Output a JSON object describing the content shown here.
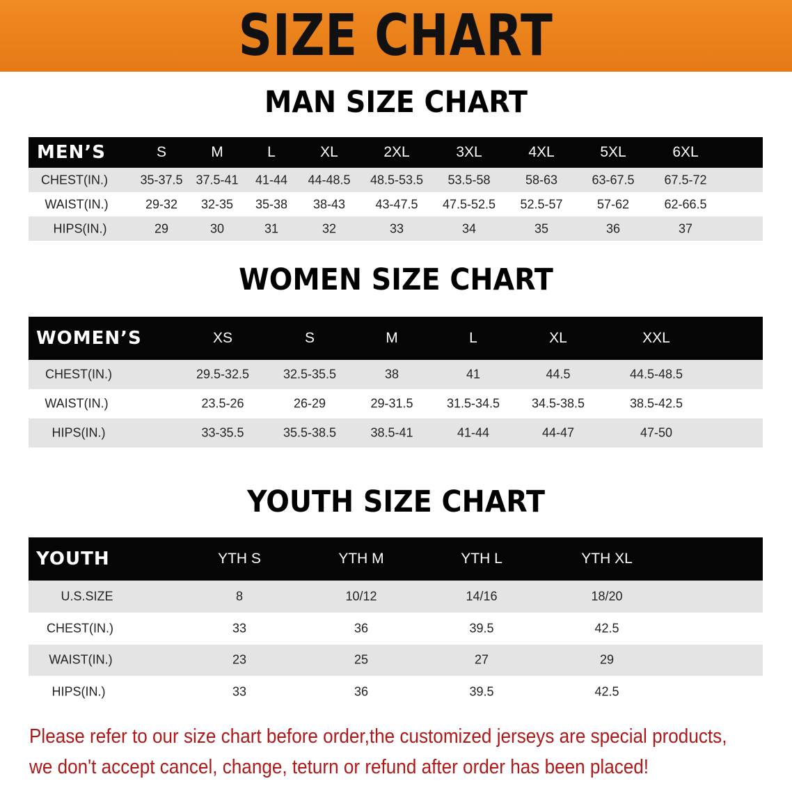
{
  "banner_title": "SIZE CHART",
  "men": {
    "title": "MAN SIZE CHART",
    "header": [
      "MEN’S",
      "S",
      "M",
      "L",
      "XL",
      "2XL",
      "3XL",
      "4XL",
      "5XL",
      "6XL"
    ],
    "rows": [
      [
        "CHEST(IN.)",
        "35-37.5",
        "37.5-41",
        "41-44",
        "44-48.5",
        "48.5-53.5",
        "53.5-58",
        "58-63",
        "63-67.5",
        "67.5-72"
      ],
      [
        "WAIST(IN.)",
        "29-32",
        "32-35",
        "35-38",
        "38-43",
        "43-47.5",
        "47.5-52.5",
        "52.5-57",
        "57-62",
        "62-66.5"
      ],
      [
        "HIPS(IN.)",
        "29",
        "30",
        "31",
        "32",
        "33",
        "34",
        "35",
        "36",
        "37"
      ]
    ]
  },
  "women": {
    "title": "WOMEN SIZE CHART",
    "header": [
      "WOMEN’S",
      "XS",
      "S",
      "M",
      "L",
      "XL",
      "XXL"
    ],
    "rows": [
      [
        "CHEST(IN.)",
        "29.5-32.5",
        "32.5-35.5",
        "38",
        "41",
        "44.5",
        "44.5-48.5"
      ],
      [
        "WAIST(IN.)",
        "23.5-26",
        "26-29",
        "29-31.5",
        "31.5-34.5",
        "34.5-38.5",
        "38.5-42.5"
      ],
      [
        "HIPS(IN.)",
        "33-35.5",
        "35.5-38.5",
        "38.5-41",
        "41-44",
        "44-47",
        "47-50"
      ]
    ]
  },
  "youth": {
    "title": "YOUTH SIZE CHART",
    "header": [
      "YOUTH",
      "YTH S",
      "YTH M",
      "YTH L",
      "YTH XL"
    ],
    "rows": [
      [
        "U.S.SIZE",
        "8",
        "10/12",
        "14/16",
        "18/20"
      ],
      [
        "CHEST(IN.)",
        "33",
        "36",
        "39.5",
        "42.5"
      ],
      [
        "WAIST(IN.)",
        "23",
        "25",
        "27",
        "29"
      ],
      [
        "HIPS(IN.)",
        "33",
        "36",
        "39.5",
        "42.5"
      ]
    ]
  },
  "notice": [
    "Please refer to our size chart before order,the customized jerseys are special products,",
    "we don't accept cancel, change, teturn or refund after order has been placed!"
  ],
  "colors": {
    "banner": "#ec8420",
    "header_row": "#050505",
    "notice": "#b01818"
  }
}
